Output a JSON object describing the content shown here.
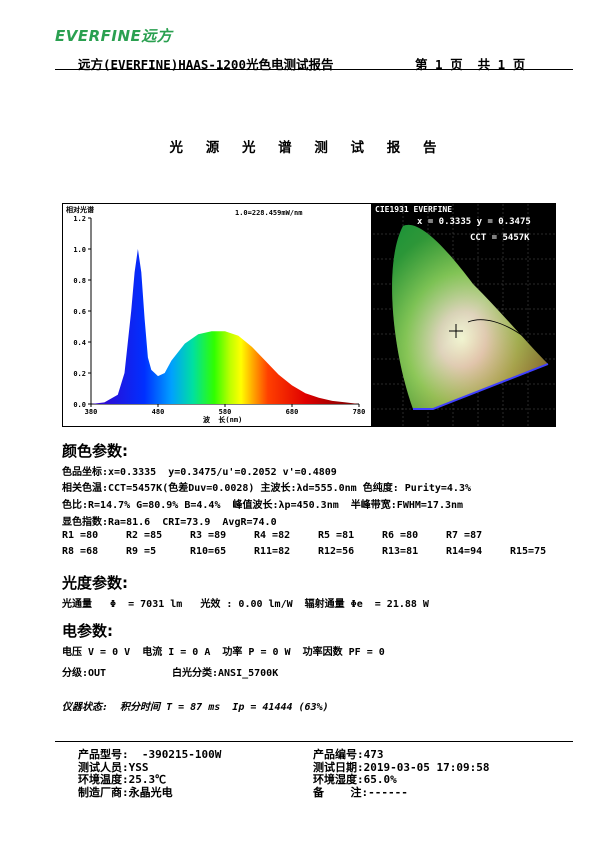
{
  "header": {
    "logo_text": "EVERFINE远方",
    "title": "远方(EVERFINE)HAAS-1200光色电测试报告",
    "page_info": "第 1 页  共 1 页"
  },
  "report_title": "光 源 光 谱 测 试 报 告",
  "spectrum_chart": {
    "ylabel": "相对光谱",
    "peak_note": "1.0=228.459mW/nm",
    "xlabel": "波  长(nm)",
    "y_ticks": [
      "1.2",
      "1.0",
      "0.8",
      "0.6",
      "0.4",
      "0.2",
      "0.0"
    ],
    "x_ticks": [
      "380",
      "480",
      "580",
      "680",
      "780"
    ]
  },
  "chart_data": {
    "type": "area",
    "x": [
      380,
      400,
      420,
      430,
      440,
      445,
      450,
      455,
      460,
      465,
      470,
      480,
      490,
      500,
      520,
      540,
      560,
      580,
      600,
      620,
      640,
      660,
      680,
      700,
      720,
      740,
      760,
      780
    ],
    "y": [
      0.0,
      0.01,
      0.06,
      0.2,
      0.6,
      0.85,
      1.0,
      0.85,
      0.55,
      0.3,
      0.22,
      0.18,
      0.2,
      0.28,
      0.39,
      0.45,
      0.47,
      0.47,
      0.44,
      0.37,
      0.28,
      0.19,
      0.12,
      0.07,
      0.04,
      0.02,
      0.01,
      0.0
    ],
    "xlim": [
      380,
      780
    ],
    "ylim": [
      0,
      1.2
    ],
    "ylabel": "相对光谱",
    "xlabel": "波  长(nm)"
  },
  "cie_chart": {
    "title": "CIE1931 EVERFINE",
    "coords": "x = 0.3335 y = 0.3475",
    "cct": "CCT = 5457K"
  },
  "color_params": {
    "heading": "颜色参数:",
    "line1": "色品坐标:x=0.3335  y=0.3475/u'=0.2052 v'=0.4809",
    "line2": "相关色温:CCT=5457K(色差Duv=0.0028) 主波长:λd=555.0nm 色纯度: Purity=4.3%",
    "line3": "色比:R=14.7% G=80.9% B=4.4%  峰值波长:λp=450.3nm  半峰带宽:FWHM=17.3nm",
    "line4": "显色指数:Ra=81.6  CRI=73.9  AvgR=74.0",
    "r_row1": [
      "R1 =80",
      "R2 =85",
      "R3 =89",
      "R4 =82",
      "R5 =81",
      "R6 =80",
      "R7 =87"
    ],
    "r_row2": [
      "R8 =68",
      "R9 =5",
      "R10=65",
      "R11=82",
      "R12=56",
      "R13=81",
      "R14=94",
      "R15=75"
    ]
  },
  "photo_params": {
    "heading": "光度参数:",
    "line1": "光通量   Φ  = 7031 lm   光效 : 0.00 lm/W  辐射通量 Φe  = 21.88 W"
  },
  "elec_params": {
    "heading": "电参数:",
    "line1": "电压 V = 0 V  电流 I = 0 A  功率 P = 0 W  功率因数 PF = 0",
    "grade": "分级:OUT",
    "white_class": "白光分类:ANSI_5700K"
  },
  "instrument": "仪器状态:  积分时间 T = 87 ms  Ip = 41444 (63%)",
  "footer": {
    "model": "产品型号:  -390215-100W",
    "product_no": "产品编号:473",
    "tester": "测试人员:YSS",
    "test_date": "测试日期:2019-03-05 17:09:58",
    "env_temp": "环境温度:25.3℃",
    "env_humid": "环境湿度:65.0%",
    "manufacturer": "制造厂商:永晶光电",
    "remark": "备    注:------"
  }
}
